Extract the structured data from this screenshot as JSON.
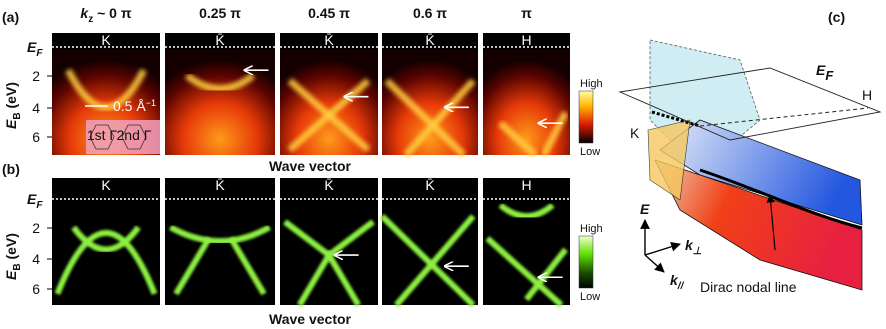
{
  "panel_a": {
    "label": "(a)",
    "x_axis": "Wave vector",
    "colorbar": {
      "high": "High",
      "low": "Low"
    },
    "scale_bar": {
      "text": "0.5 Å",
      "sup": "−1"
    },
    "bz": {
      "first": "1st Γ",
      "second": "2nd Γ"
    },
    "points": [
      "K",
      "K̄",
      "K̄",
      "K̄",
      "H"
    ]
  },
  "panel_b": {
    "label": "(b)",
    "x_axis": "Wave vector",
    "colorbar": {
      "high": "High",
      "low": "Low"
    },
    "points": [
      "K",
      "K̄",
      "K̄",
      "K̄",
      "H"
    ]
  },
  "axis": {
    "ef": {
      "E": "E",
      "sub": "F"
    },
    "eb": {
      "E": "E",
      "sub": "B",
      "unit": " (eV)"
    },
    "ticks": [
      "2",
      "4",
      "6"
    ]
  },
  "headers": {
    "kz": {
      "k": "k",
      "sub": "z",
      "rest": " ~ 0 π"
    },
    "others": [
      "0.25 π",
      "0.45 π",
      "0.6 π",
      "π"
    ]
  },
  "panel_c": {
    "label": "(c)",
    "ef": {
      "E": "E",
      "sub": "F"
    },
    "h": "H",
    "k": "K",
    "e_axis": "E",
    "kperp": {
      "k": "k",
      "sub": "⊥"
    },
    "kpar": {
      "k": "k",
      "sub": "//"
    },
    "caption": "Dirac nodal line"
  }
}
